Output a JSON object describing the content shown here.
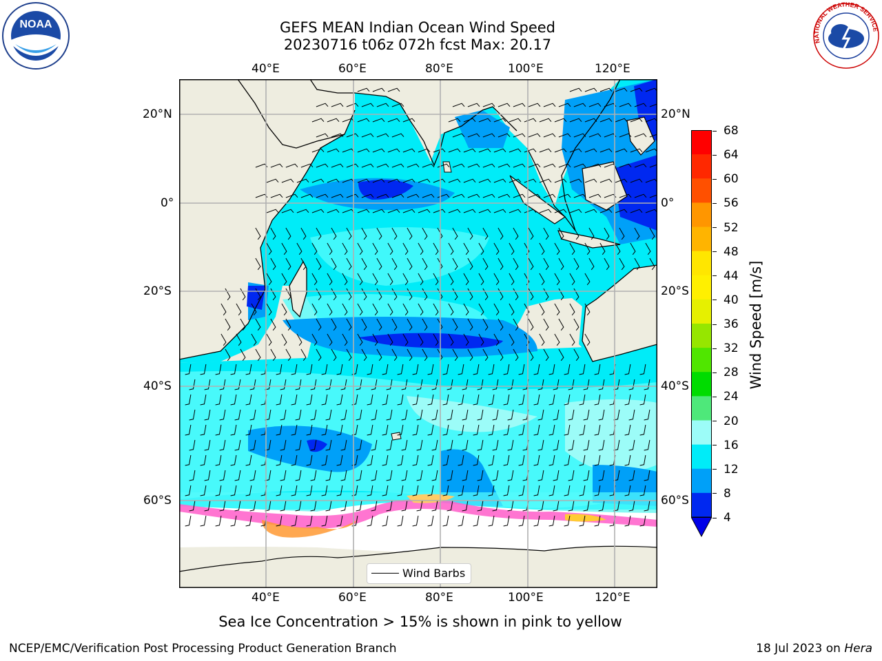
{
  "title": {
    "line1": "GEFS MEAN Indian Ocean Wind Speed",
    "line2": "20230716 t06z 072h fcst   Max: 20.17"
  },
  "logos": {
    "left": "NOAA",
    "right": "NATIONAL WEATHER SERVICE"
  },
  "axes": {
    "lon_top": [
      "40°E",
      "60°E",
      "80°E",
      "100°E",
      "120°E"
    ],
    "lon_bottom": [
      "40°E",
      "60°E",
      "80°E",
      "100°E",
      "120°E"
    ],
    "lat_left": [
      "20°N",
      "0°",
      "20°S",
      "40°S",
      "60°S"
    ],
    "lat_right": [
      "20°N",
      "0°",
      "20°S",
      "40°S",
      "60°S"
    ]
  },
  "legend": {
    "label": "Wind Barbs"
  },
  "colorbar": {
    "label": "Wind Speed [m/s]",
    "ticks": [
      "68",
      "64",
      "60",
      "56",
      "52",
      "48",
      "44",
      "40",
      "36",
      "32",
      "28",
      "24",
      "20",
      "16",
      "12",
      "8",
      "4"
    ],
    "colors": [
      "#ff0000",
      "#ff2800",
      "#ff5000",
      "#ff7800",
      "#ff9600",
      "#ffb400",
      "#ffe600",
      "#fff000",
      "#e6f000",
      "#c8f000",
      "#96e600",
      "#50e600",
      "#00dc00",
      "#4ee87a",
      "#9cfcf8",
      "#55fcfc",
      "#00ecf8",
      "#00a0f8",
      "#0028f0"
    ]
  },
  "caption": "Sea Ice Concentration > 15% is shown in pink to yellow",
  "footer": {
    "left": "NCEP/EMC/Verification Post Processing Product Generation Branch",
    "date": "18 Jul 2023 on ",
    "machine": "Hera"
  }
}
